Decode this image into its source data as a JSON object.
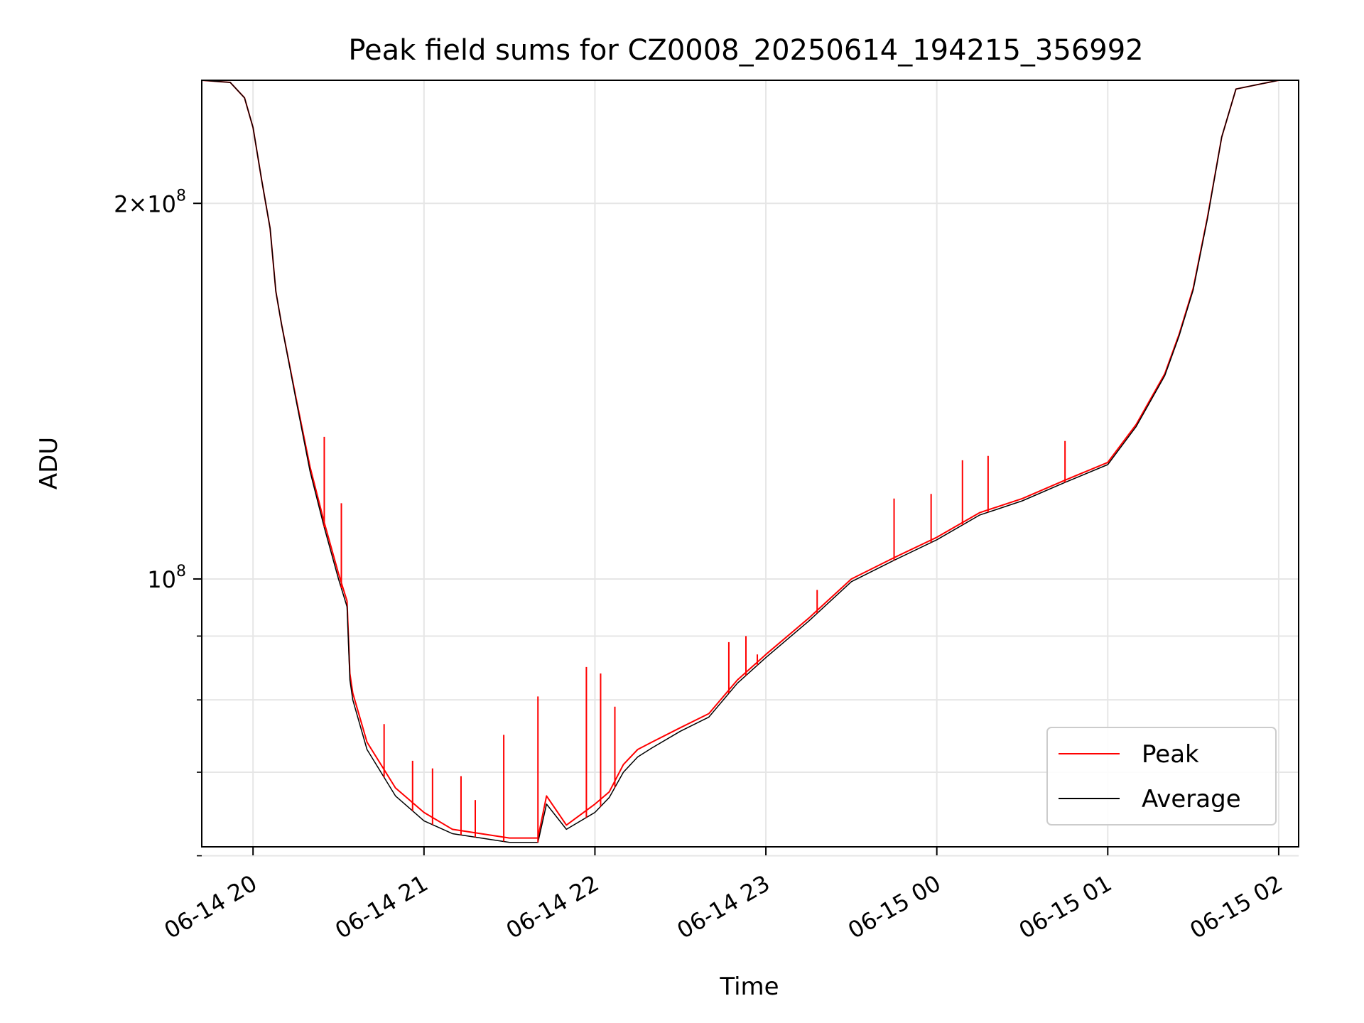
{
  "chart_data": {
    "type": "line",
    "title": "Peak field sums for CZ0008_20250614_194215_356992",
    "xlabel": "Time",
    "ylabel": "ADU",
    "xlim": [
      "06-14 19:42",
      "06-15 02:07"
    ],
    "ylim": [
      61000000,
      251000000
    ],
    "yscale": "log",
    "grid": true,
    "legend_position": "lower-right",
    "x_tick_labels": [
      "06-14 20",
      "06-14 21",
      "06-14 22",
      "06-14 23",
      "06-15 00",
      "06-15 01",
      "06-15 02"
    ],
    "x_tick_times": [
      "06-14 20:00",
      "06-14 21:00",
      "06-14 22:00",
      "06-14 23:00",
      "06-15 00:00",
      "06-15 01:00",
      "06-15 02:00"
    ],
    "y_major_ticks": [
      {
        "value": 200000000,
        "mantissa": "2",
        "exponent": "8"
      },
      {
        "value": 100000000,
        "mantissa": "",
        "exponent": "8"
      }
    ],
    "y_minor_ticks": [
      60000000,
      70000000,
      80000000,
      90000000
    ],
    "series": [
      {
        "name": "Peak",
        "color": "#ff0000",
        "x": [
          "06-14 19:42",
          "06-14 19:52",
          "06-14 19:57",
          "06-14 20:00",
          "06-14 20:03",
          "06-14 20:06",
          "06-14 20:08",
          "06-14 20:10",
          "06-14 20:15",
          "06-14 20:20",
          "06-14 20:25",
          "06-14 20:30",
          "06-14 20:33",
          "06-14 20:34",
          "06-14 20:35",
          "06-14 20:40",
          "06-14 20:50",
          "06-14 21:00",
          "06-14 21:10",
          "06-14 21:20",
          "06-14 21:30",
          "06-14 21:40",
          "06-14 21:43",
          "06-14 21:50",
          "06-14 22:00",
          "06-14 22:05",
          "06-14 22:10",
          "06-14 22:15",
          "06-14 22:20",
          "06-14 22:30",
          "06-14 22:40",
          "06-14 22:50",
          "06-14 23:00",
          "06-14 23:15",
          "06-14 23:30",
          "06-14 23:45",
          "06-15 00:00",
          "06-15 00:15",
          "06-15 00:30",
          "06-15 00:45",
          "06-15 01:00",
          "06-15 01:10",
          "06-15 01:20",
          "06-15 01:25",
          "06-15 01:30",
          "06-15 01:35",
          "06-15 01:40",
          "06-15 01:45",
          "06-15 02:00",
          "06-15 02:07"
        ],
        "y": [
          251000000,
          250000000,
          243000000,
          230000000,
          209000000,
          191000000,
          170000000,
          160000000,
          140000000,
          123000000,
          111000000,
          101000000,
          96000000,
          84000000,
          81000000,
          74000000,
          68000000,
          65000000,
          63000000,
          62500000,
          62000000,
          62000000,
          67000000,
          63500000,
          66000000,
          67500000,
          71000000,
          73000000,
          74000000,
          76000000,
          78000000,
          83000000,
          87000000,
          93000000,
          100000000,
          104000000,
          108000000,
          113000000,
          116000000,
          120000000,
          124000000,
          133000000,
          146000000,
          157000000,
          171000000,
          195000000,
          226000000,
          247000000,
          251000000,
          251000000
        ]
      },
      {
        "name": "Average",
        "color": "#000000",
        "x": [
          "06-14 19:42",
          "06-14 19:52",
          "06-14 19:57",
          "06-14 20:00",
          "06-14 20:03",
          "06-14 20:06",
          "06-14 20:08",
          "06-14 20:10",
          "06-14 20:15",
          "06-14 20:20",
          "06-14 20:25",
          "06-14 20:30",
          "06-14 20:33",
          "06-14 20:34",
          "06-14 20:35",
          "06-14 20:40",
          "06-14 20:50",
          "06-14 21:00",
          "06-14 21:10",
          "06-14 21:20",
          "06-14 21:30",
          "06-14 21:40",
          "06-14 21:43",
          "06-14 21:50",
          "06-14 22:00",
          "06-14 22:05",
          "06-14 22:10",
          "06-14 22:15",
          "06-14 22:20",
          "06-14 22:30",
          "06-14 22:40",
          "06-14 22:50",
          "06-14 23:00",
          "06-14 23:15",
          "06-14 23:30",
          "06-14 23:45",
          "06-15 00:00",
          "06-15 00:15",
          "06-15 00:30",
          "06-15 00:45",
          "06-15 01:00",
          "06-15 01:10",
          "06-15 01:20",
          "06-15 01:25",
          "06-15 01:30",
          "06-15 01:35",
          "06-15 01:40",
          "06-15 01:45",
          "06-15 02:00",
          "06-15 02:07"
        ],
        "y": [
          251000000,
          250000000,
          243000000,
          230000000,
          209000000,
          191000000,
          170000000,
          160000000,
          139500000,
          122000000,
          110000000,
          100000000,
          95000000,
          83000000,
          80000000,
          73000000,
          67000000,
          64000000,
          62500000,
          62000000,
          61500000,
          61500000,
          66000000,
          63000000,
          65000000,
          66800000,
          70000000,
          72000000,
          73200000,
          75500000,
          77500000,
          82500000,
          86500000,
          92500000,
          99500000,
          103500000,
          107500000,
          112500000,
          115500000,
          119500000,
          123500000,
          132500000,
          145500000,
          156500000,
          170500000,
          194500000,
          226000000,
          247000000,
          251000000,
          251000000
        ]
      }
    ],
    "peak_spikes": [
      {
        "x": "06-14 20:25",
        "y": 130000000
      },
      {
        "x": "06-14 20:31",
        "y": 115000000
      },
      {
        "x": "06-14 20:46",
        "y": 76500000
      },
      {
        "x": "06-14 20:56",
        "y": 71500000
      },
      {
        "x": "06-14 21:03",
        "y": 70500000
      },
      {
        "x": "06-14 21:13",
        "y": 69500000
      },
      {
        "x": "06-14 21:18",
        "y": 66500000
      },
      {
        "x": "06-14 21:28",
        "y": 75000000
      },
      {
        "x": "06-14 21:40",
        "y": 80500000
      },
      {
        "x": "06-14 21:57",
        "y": 85000000
      },
      {
        "x": "06-14 22:02",
        "y": 84000000
      },
      {
        "x": "06-14 22:07",
        "y": 79000000
      },
      {
        "x": "06-14 22:47",
        "y": 89000000
      },
      {
        "x": "06-14 22:53",
        "y": 90000000
      },
      {
        "x": "06-14 22:57",
        "y": 87000000
      },
      {
        "x": "06-14 23:18",
        "y": 98000000
      },
      {
        "x": "06-14 23:45",
        "y": 116000000
      },
      {
        "x": "06-14 23:58",
        "y": 117000000
      },
      {
        "x": "06-15 00:09",
        "y": 124500000
      },
      {
        "x": "06-15 00:18",
        "y": 125500000
      },
      {
        "x": "06-15 00:45",
        "y": 129000000
      }
    ]
  }
}
